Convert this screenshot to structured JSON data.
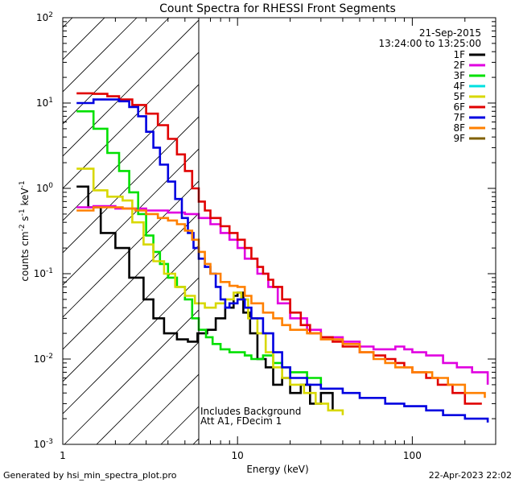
{
  "chart_data": {
    "type": "line",
    "title": "Count Spectra for RHESSI Front Segments",
    "xlabel": "Energy (keV)",
    "ylabel_html": "counts cm^-2 s^-1 keV^-1",
    "ylabel": {
      "base": "counts cm",
      "e1": "-2",
      "mid1": " s",
      "e2": "-1",
      "mid2": " keV",
      "e3": "-1"
    },
    "x_scale": "log",
    "y_scale": "log",
    "xlim": [
      1,
      300
    ],
    "ylim": [
      0.001,
      100
    ],
    "x_ticks": [
      {
        "v": 1,
        "label": "1"
      },
      {
        "v": 10,
        "label": "10"
      },
      {
        "v": 100,
        "label": "100"
      }
    ],
    "y_ticks": [
      {
        "v": 100,
        "base": "10",
        "exp": "2"
      },
      {
        "v": 10,
        "base": "10",
        "exp": "1"
      },
      {
        "v": 1,
        "base": "10",
        "exp": "0"
      },
      {
        "v": 0.1,
        "base": "10",
        "exp": "-1"
      },
      {
        "v": 0.01,
        "base": "10",
        "exp": "-2"
      },
      {
        "v": 0.001,
        "base": "10",
        "exp": "-3"
      }
    ],
    "date": "21-Sep-2015",
    "time_range": "13:24:00 to 13:25:00",
    "notes": [
      "Includes Background",
      "Att A1, FDecim 1"
    ],
    "hatched_region": [
      1,
      6
    ],
    "vertical_line": 6,
    "series": [
      {
        "name": "1F",
        "color": "#000000",
        "points": [
          [
            1.2,
            1.05
          ],
          [
            1.4,
            0.6
          ],
          [
            1.65,
            0.3
          ],
          [
            2.0,
            0.2
          ],
          [
            2.4,
            0.09
          ],
          [
            2.9,
            0.05
          ],
          [
            3.3,
            0.03
          ],
          [
            3.8,
            0.02
          ],
          [
            4.5,
            0.017
          ],
          [
            5.2,
            0.016
          ],
          [
            5.9,
            0.02
          ],
          [
            6.7,
            0.022
          ],
          [
            7.5,
            0.03
          ],
          [
            8.5,
            0.04
          ],
          [
            9.5,
            0.055
          ],
          [
            10.0,
            0.06
          ],
          [
            10.8,
            0.035
          ],
          [
            11.8,
            0.02
          ],
          [
            13,
            0.01
          ],
          [
            14.5,
            0.008
          ],
          [
            16,
            0.005
          ],
          [
            18,
            0.006
          ],
          [
            20,
            0.004
          ],
          [
            23,
            0.005
          ],
          [
            26,
            0.003
          ],
          [
            30,
            0.004
          ],
          [
            35,
            0.0025
          ]
        ]
      },
      {
        "name": "2F",
        "color": "#e000e0",
        "points": [
          [
            1.2,
            0.6
          ],
          [
            1.5,
            0.62
          ],
          [
            2,
            0.58
          ],
          [
            3,
            0.55
          ],
          [
            4,
            0.52
          ],
          [
            5,
            0.5
          ],
          [
            6,
            0.45
          ],
          [
            7,
            0.38
          ],
          [
            8,
            0.3
          ],
          [
            9,
            0.25
          ],
          [
            10,
            0.2
          ],
          [
            11,
            0.15
          ],
          [
            13,
            0.1
          ],
          [
            15,
            0.07
          ],
          [
            17,
            0.045
          ],
          [
            20,
            0.03
          ],
          [
            25,
            0.022
          ],
          [
            30,
            0.018
          ],
          [
            40,
            0.016
          ],
          [
            50,
            0.014
          ],
          [
            60,
            0.013
          ],
          [
            70,
            0.013
          ],
          [
            80,
            0.014
          ],
          [
            90,
            0.013
          ],
          [
            100,
            0.012
          ],
          [
            120,
            0.011
          ],
          [
            150,
            0.009
          ],
          [
            180,
            0.008
          ],
          [
            220,
            0.007
          ],
          [
            270,
            0.005
          ]
        ]
      },
      {
        "name": "3F",
        "color": "#00e000",
        "points": [
          [
            1.2,
            8.0
          ],
          [
            1.5,
            5.0
          ],
          [
            1.8,
            2.6
          ],
          [
            2.1,
            1.6
          ],
          [
            2.4,
            0.9
          ],
          [
            2.7,
            0.5
          ],
          [
            3.0,
            0.28
          ],
          [
            3.3,
            0.18
          ],
          [
            3.6,
            0.13
          ],
          [
            4.0,
            0.09
          ],
          [
            4.5,
            0.07
          ],
          [
            5.0,
            0.05
          ],
          [
            5.5,
            0.03
          ],
          [
            6.0,
            0.022
          ],
          [
            6.6,
            0.018
          ],
          [
            7.2,
            0.015
          ],
          [
            8,
            0.013
          ],
          [
            9,
            0.012
          ],
          [
            10,
            0.012
          ],
          [
            11,
            0.011
          ],
          [
            12,
            0.01
          ],
          [
            14,
            0.011
          ],
          [
            16,
            0.009
          ],
          [
            18,
            0.008
          ],
          [
            20,
            0.007
          ],
          [
            25,
            0.006
          ],
          [
            30,
            0.005
          ]
        ]
      },
      {
        "name": "4F",
        "color": "#00e0e0",
        "points": []
      },
      {
        "name": "5F",
        "color": "#d8d800",
        "points": [
          [
            1.2,
            1.7
          ],
          [
            1.5,
            0.95
          ],
          [
            1.8,
            0.8
          ],
          [
            2.2,
            0.72
          ],
          [
            2.5,
            0.4
          ],
          [
            2.9,
            0.22
          ],
          [
            3.3,
            0.14
          ],
          [
            3.8,
            0.1
          ],
          [
            4.4,
            0.07
          ],
          [
            5.0,
            0.055
          ],
          [
            5.7,
            0.045
          ],
          [
            6.5,
            0.04
          ],
          [
            7.5,
            0.045
          ],
          [
            8.5,
            0.05
          ],
          [
            9.5,
            0.06
          ],
          [
            10.5,
            0.05
          ],
          [
            11.5,
            0.03
          ],
          [
            13,
            0.02
          ],
          [
            14.5,
            0.012
          ],
          [
            16,
            0.008
          ],
          [
            18,
            0.006
          ],
          [
            20,
            0.005
          ],
          [
            24,
            0.004
          ],
          [
            28,
            0.003
          ],
          [
            33,
            0.0025
          ],
          [
            40,
            0.0022
          ]
        ]
      },
      {
        "name": "6F",
        "color": "#e00000",
        "points": [
          [
            1.2,
            13.0
          ],
          [
            1.5,
            12.8
          ],
          [
            1.8,
            12.0
          ],
          [
            2.1,
            11.0
          ],
          [
            2.5,
            9.5
          ],
          [
            3.0,
            7.5
          ],
          [
            3.5,
            5.5
          ],
          [
            4.0,
            3.8
          ],
          [
            4.5,
            2.5
          ],
          [
            5.0,
            1.6
          ],
          [
            5.5,
            1.0
          ],
          [
            6.0,
            0.7
          ],
          [
            6.5,
            0.55
          ],
          [
            7.0,
            0.45
          ],
          [
            8,
            0.36
          ],
          [
            9,
            0.3
          ],
          [
            10,
            0.25
          ],
          [
            11,
            0.2
          ],
          [
            12,
            0.15
          ],
          [
            13,
            0.12
          ],
          [
            14,
            0.1
          ],
          [
            15,
            0.085
          ],
          [
            16,
            0.07
          ],
          [
            18,
            0.05
          ],
          [
            20,
            0.035
          ],
          [
            23,
            0.025
          ],
          [
            26,
            0.02
          ],
          [
            30,
            0.018
          ],
          [
            35,
            0.016
          ],
          [
            40,
            0.014
          ],
          [
            50,
            0.012
          ],
          [
            60,
            0.011
          ],
          [
            70,
            0.01
          ],
          [
            80,
            0.009
          ],
          [
            90,
            0.008
          ],
          [
            100,
            0.007
          ],
          [
            120,
            0.006
          ],
          [
            140,
            0.005
          ],
          [
            170,
            0.004
          ],
          [
            200,
            0.003
          ],
          [
            250,
            0.003
          ]
        ]
      },
      {
        "name": "7F",
        "color": "#0000e0",
        "points": [
          [
            1.2,
            10.0
          ],
          [
            1.5,
            11.0
          ],
          [
            1.8,
            11.0
          ],
          [
            2.1,
            10.5
          ],
          [
            2.4,
            9.0
          ],
          [
            2.7,
            7.0
          ],
          [
            3.0,
            4.6
          ],
          [
            3.3,
            3.0
          ],
          [
            3.6,
            1.9
          ],
          [
            4.0,
            1.2
          ],
          [
            4.4,
            0.75
          ],
          [
            4.8,
            0.45
          ],
          [
            5.2,
            0.3
          ],
          [
            5.6,
            0.2
          ],
          [
            6.0,
            0.15
          ],
          [
            6.5,
            0.12
          ],
          [
            7.0,
            0.1
          ],
          [
            7.5,
            0.07
          ],
          [
            8.0,
            0.05
          ],
          [
            8.5,
            0.04
          ],
          [
            9,
            0.045
          ],
          [
            10,
            0.05
          ],
          [
            11,
            0.04
          ],
          [
            12,
            0.03
          ],
          [
            14,
            0.02
          ],
          [
            16,
            0.012
          ],
          [
            18,
            0.008
          ],
          [
            20,
            0.006
          ],
          [
            25,
            0.005
          ],
          [
            30,
            0.0045
          ],
          [
            40,
            0.004
          ],
          [
            50,
            0.0035
          ],
          [
            70,
            0.003
          ],
          [
            90,
            0.0028
          ],
          [
            120,
            0.0025
          ],
          [
            150,
            0.0022
          ],
          [
            200,
            0.002
          ],
          [
            270,
            0.0018
          ]
        ]
      },
      {
        "name": "8F",
        "color": "#ff8000",
        "points": [
          [
            1.2,
            0.55
          ],
          [
            1.5,
            0.6
          ],
          [
            1.8,
            0.6
          ],
          [
            2.2,
            0.58
          ],
          [
            2.6,
            0.55
          ],
          [
            3.0,
            0.5
          ],
          [
            3.5,
            0.45
          ],
          [
            4.0,
            0.42
          ],
          [
            4.5,
            0.38
          ],
          [
            5.0,
            0.32
          ],
          [
            5.5,
            0.25
          ],
          [
            6.0,
            0.18
          ],
          [
            6.5,
            0.13
          ],
          [
            7.0,
            0.1
          ],
          [
            8,
            0.08
          ],
          [
            9,
            0.072
          ],
          [
            10,
            0.07
          ],
          [
            11,
            0.055
          ],
          [
            12,
            0.045
          ],
          [
            14,
            0.035
          ],
          [
            16,
            0.03
          ],
          [
            18,
            0.025
          ],
          [
            20,
            0.022
          ],
          [
            25,
            0.02
          ],
          [
            30,
            0.017
          ],
          [
            40,
            0.015
          ],
          [
            50,
            0.012
          ],
          [
            60,
            0.01
          ],
          [
            70,
            0.009
          ],
          [
            80,
            0.008
          ],
          [
            100,
            0.007
          ],
          [
            130,
            0.006
          ],
          [
            160,
            0.005
          ],
          [
            200,
            0.004
          ],
          [
            260,
            0.0035
          ]
        ]
      },
      {
        "name": "9F",
        "color": "#806000",
        "points": []
      }
    ]
  },
  "footer_left": "Generated by hsi_min_spectra_plot.pro",
  "footer_right": "22-Apr-2023 22:02"
}
